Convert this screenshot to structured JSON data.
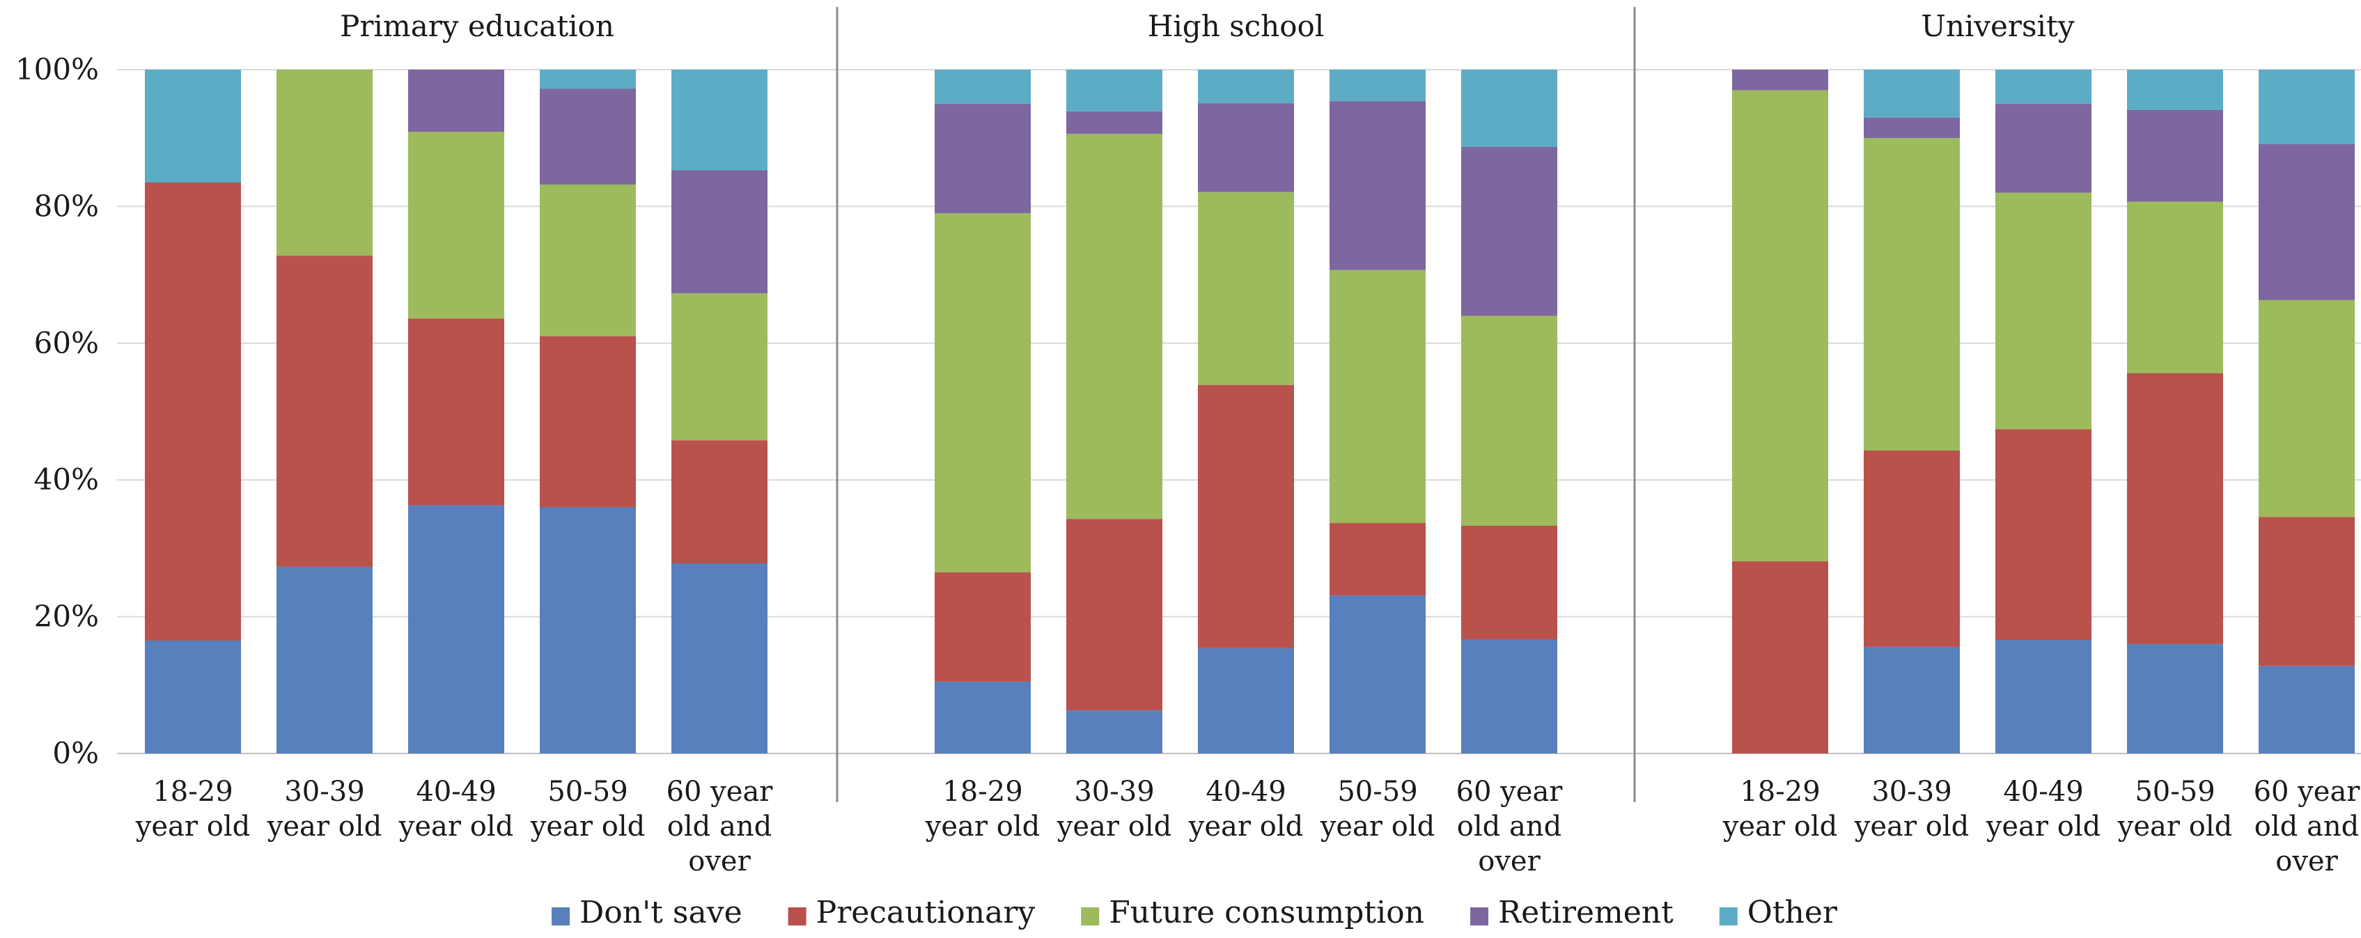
{
  "chart_data": {
    "type": "bar",
    "stacked": "percent",
    "ylim": [
      0,
      100
    ],
    "yticks": [
      "0%",
      "20%",
      "40%",
      "60%",
      "80%",
      "100%"
    ],
    "grid": true,
    "legend_position": "bottom",
    "series": [
      {
        "name": "Don't save",
        "color": "#5880BC"
      },
      {
        "name": "Precautionary",
        "color": "#B9514C"
      },
      {
        "name": "Future consumption",
        "color": "#9DBA5D"
      },
      {
        "name": "Retirement",
        "color": "#7E66A0"
      },
      {
        "name": "Other",
        "color": "#5DACC6"
      }
    ],
    "panels": [
      {
        "title": "Primary education",
        "categories": [
          [
            "18-29",
            "year old"
          ],
          [
            "30-39",
            "year old"
          ],
          [
            "40-49",
            "year old"
          ],
          [
            "50-59",
            "year old"
          ],
          [
            "60  year",
            "old and",
            "over"
          ]
        ],
        "values": [
          [
            16.5,
            67,
            0,
            0,
            16.5
          ],
          [
            27.3,
            45.5,
            27.2,
            0,
            0
          ],
          [
            36.3,
            27.3,
            27.3,
            9.1,
            0
          ],
          [
            36,
            25,
            22.2,
            14,
            2.8
          ],
          [
            27.8,
            18,
            21.5,
            18,
            14.7
          ]
        ]
      },
      {
        "title": "High school",
        "categories": [
          [
            "18-29",
            "year old"
          ],
          [
            "30-39",
            "year old"
          ],
          [
            "40-49",
            "year old"
          ],
          [
            "50-59",
            "year old"
          ],
          [
            "60  year",
            "old and",
            "over"
          ]
        ],
        "values": [
          [
            10.5,
            16,
            52.5,
            16,
            5
          ],
          [
            6.3,
            28,
            56.3,
            3.3,
            6.1
          ],
          [
            15.4,
            38.5,
            28.2,
            13,
            4.9
          ],
          [
            23.1,
            10.6,
            37,
            24.7,
            4.6
          ],
          [
            16.7,
            16.6,
            30.7,
            24.7,
            11.3
          ]
        ]
      },
      {
        "title": "University",
        "categories": [
          [
            "18-29",
            "year old"
          ],
          [
            "30-39",
            "year old"
          ],
          [
            "40-49",
            "year old"
          ],
          [
            "50-59",
            "year old"
          ],
          [
            "60  year",
            "old and",
            "over"
          ]
        ],
        "values": [
          [
            0,
            28.1,
            68.9,
            3,
            0
          ],
          [
            15.6,
            28.7,
            45.7,
            3,
            7
          ],
          [
            16.6,
            30.8,
            34.6,
            13,
            5
          ],
          [
            16,
            39.6,
            25.1,
            13.4,
            5.9
          ],
          [
            12.8,
            21.8,
            31.7,
            22.8,
            10.9
          ]
        ]
      }
    ]
  }
}
